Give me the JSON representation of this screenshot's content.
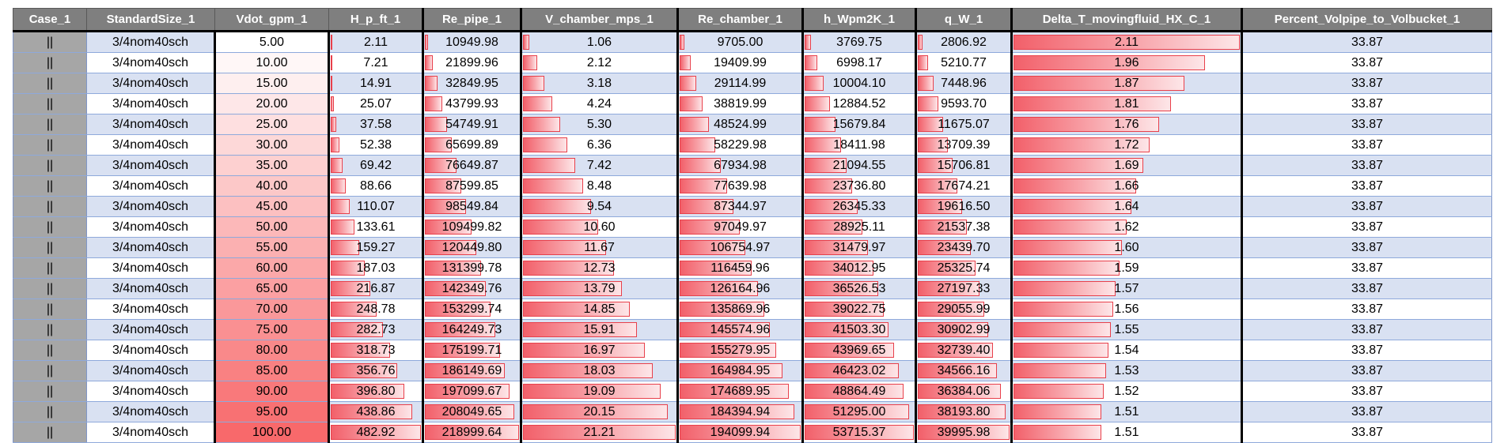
{
  "sheet": {
    "headers": [
      "Case_1",
      "StandardSize_1",
      "Vdot_gpm_1",
      "H_p_ft_1",
      "Re_pipe_1",
      "V_chamber_mps_1",
      "Re_chamber_1",
      "h_Wpm2K_1",
      "q_W_1",
      "Delta_T_movingfluid_HX_C_1",
      "Percent_Volpipe_to_Volbucket_1"
    ],
    "rows": [
      [
        "||",
        "3/4nom40sch",
        "5.00",
        "2.11",
        "10949.98",
        "1.06",
        "9705.00",
        "3769.75",
        "2806.92",
        "2.11",
        "33.87"
      ],
      [
        "||",
        "3/4nom40sch",
        "10.00",
        "7.21",
        "21899.96",
        "2.12",
        "19409.99",
        "6998.17",
        "5210.77",
        "1.96",
        "33.87"
      ],
      [
        "||",
        "3/4nom40sch",
        "15.00",
        "14.91",
        "32849.95",
        "3.18",
        "29114.99",
        "10004.10",
        "7448.96",
        "1.87",
        "33.87"
      ],
      [
        "||",
        "3/4nom40sch",
        "20.00",
        "25.07",
        "43799.93",
        "4.24",
        "38819.99",
        "12884.52",
        "9593.70",
        "1.81",
        "33.87"
      ],
      [
        "||",
        "3/4nom40sch",
        "25.00",
        "37.58",
        "54749.91",
        "5.30",
        "48524.99",
        "15679.84",
        "11675.07",
        "1.76",
        "33.87"
      ],
      [
        "||",
        "3/4nom40sch",
        "30.00",
        "52.38",
        "65699.89",
        "6.36",
        "58229.98",
        "18411.98",
        "13709.39",
        "1.72",
        "33.87"
      ],
      [
        "||",
        "3/4nom40sch",
        "35.00",
        "69.42",
        "76649.87",
        "7.42",
        "67934.98",
        "21094.55",
        "15706.81",
        "1.69",
        "33.87"
      ],
      [
        "||",
        "3/4nom40sch",
        "40.00",
        "88.66",
        "87599.85",
        "8.48",
        "77639.98",
        "23736.80",
        "17674.21",
        "1.66",
        "33.87"
      ],
      [
        "||",
        "3/4nom40sch",
        "45.00",
        "110.07",
        "98549.84",
        "9.54",
        "87344.97",
        "26345.33",
        "19616.50",
        "1.64",
        "33.87"
      ],
      [
        "||",
        "3/4nom40sch",
        "50.00",
        "133.61",
        "109499.82",
        "10.60",
        "97049.97",
        "28925.11",
        "21537.38",
        "1.62",
        "33.87"
      ],
      [
        "||",
        "3/4nom40sch",
        "55.00",
        "159.27",
        "120449.80",
        "11.67",
        "106754.97",
        "31479.97",
        "23439.70",
        "1.60",
        "33.87"
      ],
      [
        "||",
        "3/4nom40sch",
        "60.00",
        "187.03",
        "131399.78",
        "12.73",
        "116459.96",
        "34012.95",
        "25325.74",
        "1.59",
        "33.87"
      ],
      [
        "||",
        "3/4nom40sch",
        "65.00",
        "216.87",
        "142349.76",
        "13.79",
        "126164.96",
        "36526.53",
        "27197.33",
        "1.57",
        "33.87"
      ],
      [
        "||",
        "3/4nom40sch",
        "70.00",
        "248.78",
        "153299.74",
        "14.85",
        "135869.96",
        "39022.75",
        "29055.99",
        "1.56",
        "33.87"
      ],
      [
        "||",
        "3/4nom40sch",
        "75.00",
        "282.73",
        "164249.73",
        "15.91",
        "145574.96",
        "41503.30",
        "30902.99",
        "1.55",
        "33.87"
      ],
      [
        "||",
        "3/4nom40sch",
        "80.00",
        "318.73",
        "175199.71",
        "16.97",
        "155279.95",
        "43969.65",
        "32739.40",
        "1.54",
        "33.87"
      ],
      [
        "||",
        "3/4nom40sch",
        "85.00",
        "356.76",
        "186149.69",
        "18.03",
        "164984.95",
        "46423.02",
        "34566.16",
        "1.53",
        "33.87"
      ],
      [
        "||",
        "3/4nom40sch",
        "90.00",
        "396.80",
        "197099.67",
        "19.09",
        "174689.95",
        "48864.49",
        "36384.06",
        "1.52",
        "33.87"
      ],
      [
        "||",
        "3/4nom40sch",
        "95.00",
        "438.86",
        "208049.65",
        "20.15",
        "184394.94",
        "51295.00",
        "38193.80",
        "1.51",
        "33.87"
      ],
      [
        "||",
        "3/4nom40sch",
        "100.00",
        "482.92",
        "218999.64",
        "21.21",
        "194099.94",
        "53715.37",
        "39995.98",
        "1.51",
        "33.87"
      ]
    ],
    "data_bar_columns": [
      3,
      4,
      5,
      6,
      7,
      8,
      9
    ],
    "color_scale_column": 2,
    "colors": {
      "header_bg": "#7f7f7f",
      "band_blue": "#d9e1f2",
      "bar_red": "#f2606a",
      "scale_low": "#ffffff",
      "scale_high": "#f8696b"
    }
  }
}
